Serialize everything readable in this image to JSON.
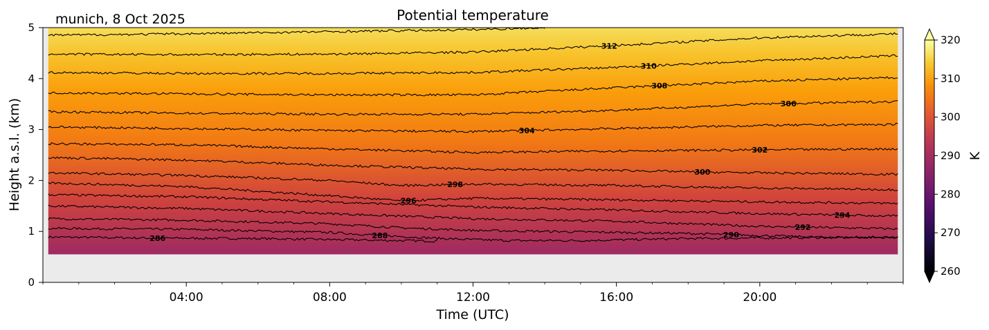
{
  "chart_data": {
    "type": "heatmap",
    "title": "Potential temperature",
    "location_date": "munich, 8 Oct 2025",
    "xlabel": "Time (UTC)",
    "ylabel": "Height a.s.l. (km)",
    "x_range_hours": [
      0,
      24
    ],
    "x_ticks": [
      {
        "hour": 4,
        "label": "04:00"
      },
      {
        "hour": 8,
        "label": "08:00"
      },
      {
        "hour": 12,
        "label": "12:00"
      },
      {
        "hour": 16,
        "label": "16:00"
      },
      {
        "hour": 20,
        "label": "20:00"
      }
    ],
    "ylim": [
      0,
      5
    ],
    "y_ticks": [
      {
        "value": 0,
        "label": "0"
      },
      {
        "value": 1,
        "label": "1"
      },
      {
        "value": 2,
        "label": "2"
      },
      {
        "value": 3,
        "label": "3"
      },
      {
        "value": 4,
        "label": "4"
      },
      {
        "value": 5,
        "label": "5"
      }
    ],
    "data_extent": {
      "x_hours": [
        0.15,
        23.85
      ],
      "height_km": [
        0.55,
        5.0
      ]
    },
    "missing_data_color": "#ebebeb",
    "colormap": "inferno",
    "colorbar": {
      "label": "K",
      "range": [
        260,
        320
      ],
      "extend": "both",
      "ticks": [
        {
          "value": 320,
          "label": "320"
        },
        {
          "value": 310,
          "label": "310"
        },
        {
          "value": 300,
          "label": "300"
        },
        {
          "value": 290,
          "label": "290"
        },
        {
          "value": 280,
          "label": "280"
        },
        {
          "value": 270,
          "label": "270"
        },
        {
          "value": 260,
          "label": "260"
        }
      ]
    },
    "contours": [
      {
        "level": 286,
        "label": "286",
        "label_at_hour": 3.2,
        "points": [
          [
            0.15,
            0.89
          ],
          [
            3,
            0.87
          ],
          [
            6,
            0.86
          ],
          [
            9,
            0.83
          ],
          [
            11,
            0.81
          ]
        ],
        "close_to_bottom": true
      },
      {
        "level": 288,
        "label": "288",
        "label_at_hour": 9.4,
        "points": [
          [
            0.15,
            1.06
          ],
          [
            4,
            1.04
          ],
          [
            8,
            0.98
          ],
          [
            10,
            0.9
          ],
          [
            11.5,
            0.85
          ],
          [
            13,
            0.82
          ],
          [
            15,
            0.82
          ],
          [
            18,
            0.86
          ],
          [
            23.85,
            0.89
          ]
        ]
      },
      {
        "level": 290,
        "label": "290",
        "label_at_hour": 19.2,
        "points": [
          [
            0.15,
            1.25
          ],
          [
            4,
            1.22
          ],
          [
            8,
            1.15
          ],
          [
            10,
            1.07
          ],
          [
            12,
            1.02
          ],
          [
            14,
            1.0
          ],
          [
            16,
            0.98
          ],
          [
            18,
            0.96
          ],
          [
            20,
            0.92
          ],
          [
            22,
            0.88
          ],
          [
            23.85,
            0.88
          ]
        ]
      },
      {
        "level": 292,
        "label": "292",
        "label_at_hour": 21.2,
        "points": [
          [
            0.15,
            1.5
          ],
          [
            4,
            1.45
          ],
          [
            8,
            1.35
          ],
          [
            12,
            1.25
          ],
          [
            16,
            1.2
          ],
          [
            20,
            1.1
          ],
          [
            23.85,
            1.05
          ]
        ]
      },
      {
        "level": 294,
        "label": "294",
        "label_at_hour": 22.3,
        "points": [
          [
            0.15,
            1.72
          ],
          [
            4,
            1.68
          ],
          [
            8,
            1.58
          ],
          [
            12,
            1.48
          ],
          [
            16,
            1.42
          ],
          [
            20,
            1.35
          ],
          [
            23.85,
            1.3
          ]
        ]
      },
      {
        "level": 296,
        "label": "296",
        "label_at_hour": 10.2,
        "points": [
          [
            0.15,
            1.95
          ],
          [
            4,
            1.88
          ],
          [
            8,
            1.7
          ],
          [
            10,
            1.6
          ],
          [
            12,
            1.65
          ],
          [
            16,
            1.62
          ],
          [
            20,
            1.58
          ],
          [
            23.85,
            1.55
          ]
        ]
      },
      {
        "level": 298,
        "label": "298",
        "label_at_hour": 11.5,
        "points": [
          [
            0.15,
            2.15
          ],
          [
            4,
            2.1
          ],
          [
            8,
            2.0
          ],
          [
            10,
            1.9
          ],
          [
            12,
            1.93
          ],
          [
            16,
            1.9
          ],
          [
            20,
            1.85
          ],
          [
            23.85,
            1.82
          ]
        ]
      },
      {
        "level": 300,
        "label": "300",
        "label_at_hour": 18.4,
        "points": [
          [
            0.15,
            2.45
          ],
          [
            4,
            2.4
          ],
          [
            8,
            2.3
          ],
          [
            12,
            2.22
          ],
          [
            16,
            2.2
          ],
          [
            18,
            2.17
          ],
          [
            20,
            2.15
          ],
          [
            23.85,
            2.12
          ]
        ]
      },
      {
        "level": 302,
        "label": "302",
        "label_at_hour": 20.0,
        "points": [
          [
            0.15,
            2.72
          ],
          [
            4,
            2.7
          ],
          [
            8,
            2.62
          ],
          [
            12,
            2.55
          ],
          [
            16,
            2.58
          ],
          [
            20,
            2.6
          ],
          [
            23.85,
            2.62
          ]
        ]
      },
      {
        "level": 304,
        "label": "304",
        "label_at_hour": 13.5,
        "points": [
          [
            0.15,
            3.05
          ],
          [
            4,
            3.02
          ],
          [
            8,
            2.98
          ],
          [
            12,
            2.96
          ],
          [
            16,
            3.02
          ],
          [
            20,
            3.08
          ],
          [
            23.85,
            3.1
          ]
        ]
      },
      {
        "level": 306,
        "label": "306",
        "label_at_hour": 20.8,
        "points": [
          [
            0.15,
            3.35
          ],
          [
            4,
            3.32
          ],
          [
            8,
            3.3
          ],
          [
            12,
            3.3
          ],
          [
            16,
            3.38
          ],
          [
            20,
            3.5
          ],
          [
            23.85,
            3.55
          ]
        ]
      },
      {
        "level": 308,
        "label": "308",
        "label_at_hour": 17.2,
        "points": [
          [
            0.15,
            3.72
          ],
          [
            4,
            3.7
          ],
          [
            8,
            3.68
          ],
          [
            12,
            3.68
          ],
          [
            16,
            3.82
          ],
          [
            20,
            3.95
          ],
          [
            23.85,
            4.02
          ]
        ]
      },
      {
        "level": 310,
        "label": "310",
        "label_at_hour": 16.9,
        "points": [
          [
            0.15,
            4.12
          ],
          [
            4,
            4.1
          ],
          [
            8,
            4.1
          ],
          [
            12,
            4.12
          ],
          [
            16,
            4.22
          ],
          [
            20,
            4.35
          ],
          [
            23.85,
            4.45
          ]
        ]
      },
      {
        "level": 312,
        "label": "312",
        "label_at_hour": 15.8,
        "points": [
          [
            0.15,
            4.48
          ],
          [
            4,
            4.47
          ],
          [
            8,
            4.48
          ],
          [
            12,
            4.52
          ],
          [
            16,
            4.65
          ],
          [
            20,
            4.8
          ],
          [
            23.85,
            4.88
          ]
        ]
      },
      {
        "level": 314,
        "label": "",
        "label_at_hour": null,
        "points": [
          [
            0.15,
            4.85
          ],
          [
            4,
            4.88
          ],
          [
            8,
            4.92
          ],
          [
            12,
            4.96
          ],
          [
            14,
            5.0
          ]
        ]
      }
    ]
  }
}
